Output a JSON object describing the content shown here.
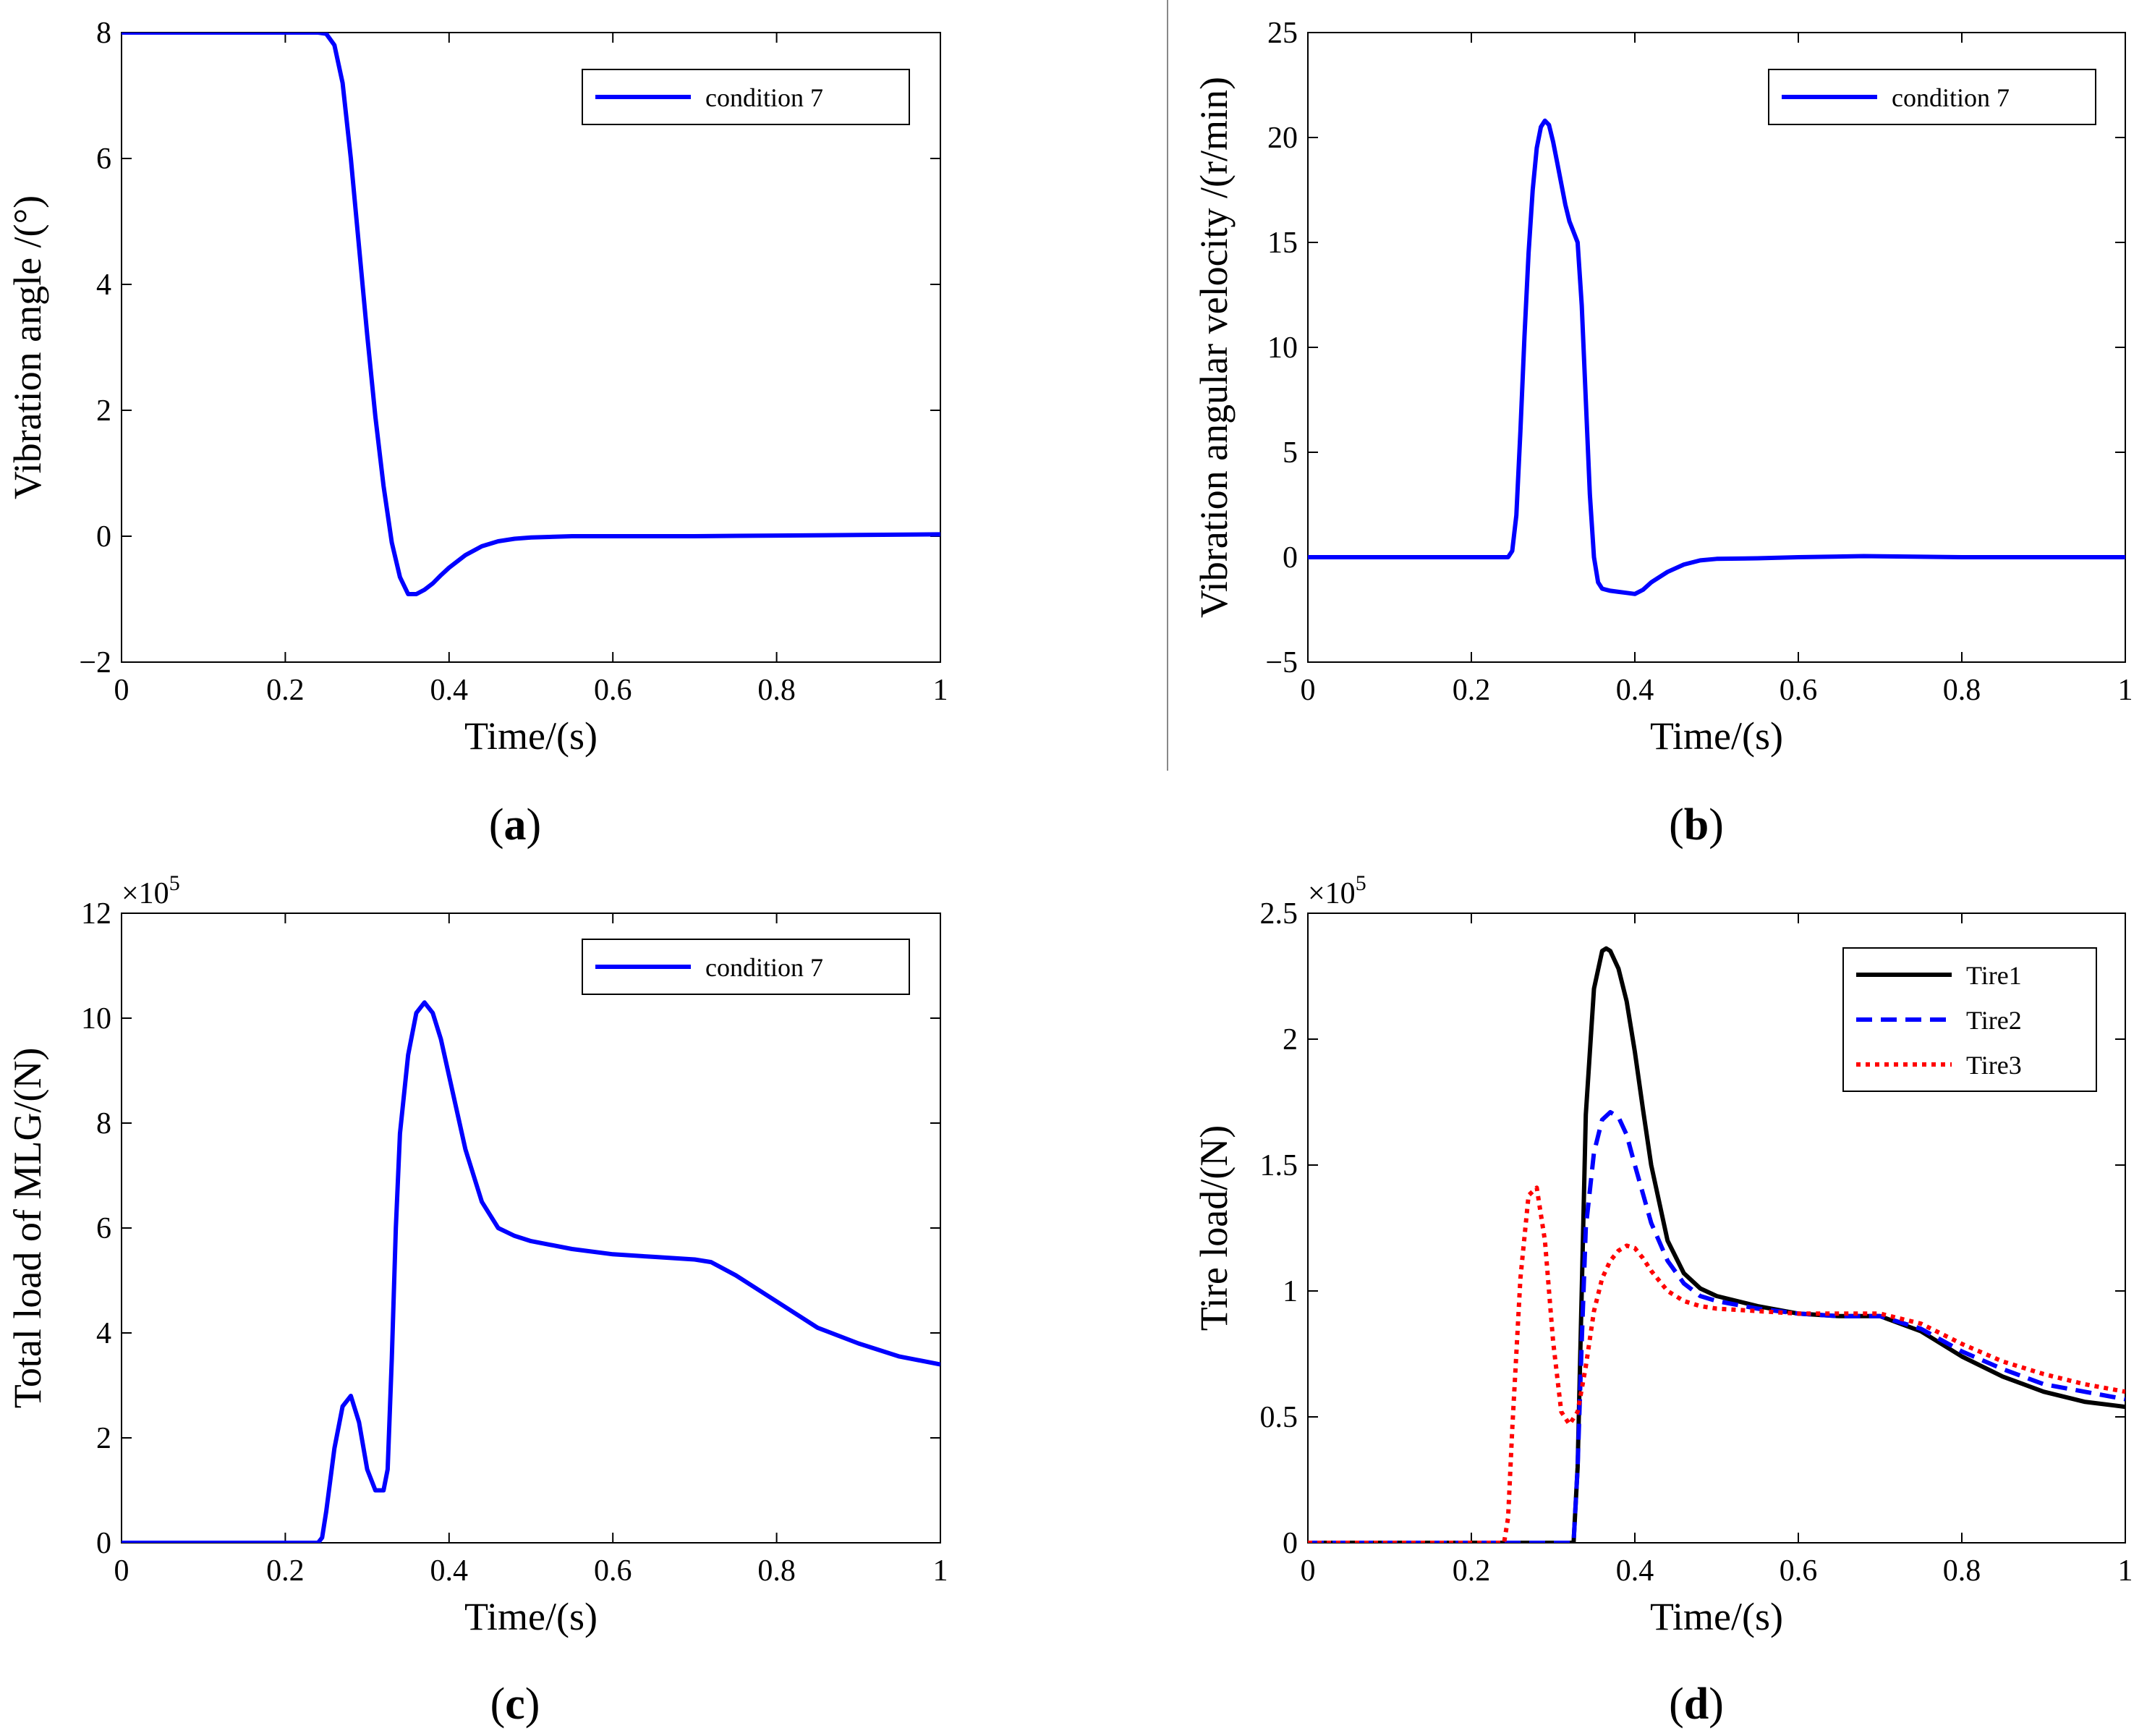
{
  "chart_data": [
    {
      "id": "a",
      "type": "line",
      "panel_label": "a",
      "xlabel": "Time/(s)",
      "ylabel": "Vibration angle /(°)",
      "xlim": [
        0,
        1
      ],
      "ylim": [
        -2,
        8
      ],
      "xticks": [
        0,
        0.2,
        0.4,
        0.6,
        0.8,
        1
      ],
      "xtick_labels": [
        "0",
        "0.2",
        "0.4",
        "0.6",
        "0.8",
        "1"
      ],
      "yticks": [
        -2,
        0,
        2,
        4,
        6,
        8
      ],
      "ytick_labels": [
        "−2",
        "0",
        "2",
        "4",
        "6",
        "8"
      ],
      "exponent_label": "",
      "legend_position": "top-right",
      "series": [
        {
          "name": "condition 7",
          "color": "#0000ff",
          "dash": "solid",
          "x": [
            0,
            0.1,
            0.2,
            0.24,
            0.25,
            0.26,
            0.27,
            0.28,
            0.29,
            0.3,
            0.31,
            0.32,
            0.33,
            0.34,
            0.35,
            0.36,
            0.37,
            0.38,
            0.39,
            0.4,
            0.42,
            0.44,
            0.46,
            0.48,
            0.5,
            0.55,
            0.6,
            0.7,
            0.8,
            0.9,
            1.0
          ],
          "y": [
            8.0,
            8.0,
            8.0,
            8.0,
            7.98,
            7.8,
            7.2,
            6.0,
            4.6,
            3.2,
            1.9,
            0.8,
            -0.1,
            -0.65,
            -0.92,
            -0.92,
            -0.85,
            -0.75,
            -0.62,
            -0.5,
            -0.3,
            -0.16,
            -0.08,
            -0.04,
            -0.02,
            0.0,
            0.0,
            0.0,
            0.01,
            0.02,
            0.03
          ]
        }
      ]
    },
    {
      "id": "b",
      "type": "line",
      "panel_label": "b",
      "xlabel": "Time/(s)",
      "ylabel": "Vibration angular velocity /(r/min)",
      "xlim": [
        0,
        1
      ],
      "ylim": [
        -5,
        25
      ],
      "xticks": [
        0,
        0.2,
        0.4,
        0.6,
        0.8,
        1
      ],
      "xtick_labels": [
        "0",
        "0.2",
        "0.4",
        "0.6",
        "0.8",
        "1"
      ],
      "yticks": [
        -5,
        0,
        5,
        10,
        15,
        20,
        25
      ],
      "ytick_labels": [
        "−5",
        "0",
        "5",
        "10",
        "15",
        "20",
        "25"
      ],
      "exponent_label": "",
      "legend_position": "top-right",
      "series": [
        {
          "name": "condition 7",
          "color": "#0000ff",
          "dash": "solid",
          "x": [
            0,
            0.1,
            0.2,
            0.245,
            0.25,
            0.255,
            0.26,
            0.265,
            0.27,
            0.275,
            0.28,
            0.285,
            0.29,
            0.295,
            0.3,
            0.305,
            0.31,
            0.315,
            0.32,
            0.325,
            0.33,
            0.335,
            0.34,
            0.345,
            0.35,
            0.355,
            0.36,
            0.365,
            0.37,
            0.38,
            0.39,
            0.4,
            0.41,
            0.42,
            0.44,
            0.46,
            0.48,
            0.5,
            0.55,
            0.6,
            0.68,
            0.8,
            0.9,
            1.0
          ],
          "y": [
            0,
            0,
            0,
            0,
            0.3,
            2.0,
            6.0,
            10.5,
            14.5,
            17.5,
            19.5,
            20.5,
            20.8,
            20.6,
            19.8,
            18.8,
            17.8,
            16.8,
            16.0,
            15.5,
            15.0,
            12.0,
            7.5,
            3.0,
            0.0,
            -1.2,
            -1.5,
            -1.55,
            -1.6,
            -1.65,
            -1.7,
            -1.75,
            -1.55,
            -1.2,
            -0.7,
            -0.35,
            -0.15,
            -0.08,
            -0.05,
            0.0,
            0.05,
            0.0,
            0.0,
            0.0
          ]
        }
      ]
    },
    {
      "id": "c",
      "type": "line",
      "panel_label": "c",
      "xlabel": "Time/(s)",
      "ylabel": "Total load of MLG/(N)",
      "xlim": [
        0,
        1
      ],
      "ylim": [
        0,
        12
      ],
      "xticks": [
        0,
        0.2,
        0.4,
        0.6,
        0.8,
        1
      ],
      "xtick_labels": [
        "0",
        "0.2",
        "0.4",
        "0.6",
        "0.8",
        "1"
      ],
      "yticks": [
        0,
        2,
        4,
        6,
        8,
        10,
        12
      ],
      "ytick_labels": [
        "0",
        "2",
        "4",
        "6",
        "8",
        "10",
        "12"
      ],
      "exponent_label": "×10",
      "exponent_power": "5",
      "legend_position": "top-right",
      "series": [
        {
          "name": "condition 7",
          "color": "#0000ff",
          "dash": "solid",
          "x": [
            0,
            0.1,
            0.2,
            0.24,
            0.245,
            0.25,
            0.26,
            0.27,
            0.28,
            0.29,
            0.3,
            0.31,
            0.32,
            0.325,
            0.33,
            0.335,
            0.34,
            0.35,
            0.36,
            0.37,
            0.38,
            0.39,
            0.4,
            0.42,
            0.44,
            0.46,
            0.48,
            0.5,
            0.55,
            0.6,
            0.65,
            0.7,
            0.72,
            0.75,
            0.8,
            0.85,
            0.9,
            0.95,
            1.0
          ],
          "y": [
            0,
            0,
            0,
            0,
            0.1,
            0.6,
            1.8,
            2.6,
            2.8,
            2.3,
            1.4,
            1.0,
            1.0,
            1.4,
            3.5,
            6.0,
            7.8,
            9.3,
            10.1,
            10.3,
            10.1,
            9.6,
            8.9,
            7.5,
            6.5,
            6.0,
            5.85,
            5.75,
            5.6,
            5.5,
            5.45,
            5.4,
            5.35,
            5.1,
            4.6,
            4.1,
            3.8,
            3.55,
            3.4
          ]
        }
      ]
    },
    {
      "id": "d",
      "type": "line",
      "panel_label": "d",
      "xlabel": "Time/(s)",
      "ylabel": "Tire load/(N)",
      "xlim": [
        0,
        1
      ],
      "ylim": [
        0,
        2.5
      ],
      "xticks": [
        0,
        0.2,
        0.4,
        0.6,
        0.8,
        1
      ],
      "xtick_labels": [
        "0",
        "0.2",
        "0.4",
        "0.6",
        "0.8",
        "1"
      ],
      "yticks": [
        0,
        0.5,
        1,
        1.5,
        2,
        2.5
      ],
      "ytick_labels": [
        "0",
        "0.5",
        "1",
        "1.5",
        "2",
        "2.5"
      ],
      "exponent_label": "×10",
      "exponent_power": "5",
      "legend_position": "top-right",
      "series": [
        {
          "name": "Tire1",
          "color": "#000000",
          "dash": "solid",
          "x": [
            0,
            0.1,
            0.2,
            0.3,
            0.325,
            0.33,
            0.335,
            0.34,
            0.35,
            0.36,
            0.365,
            0.37,
            0.38,
            0.39,
            0.4,
            0.41,
            0.42,
            0.44,
            0.46,
            0.48,
            0.5,
            0.55,
            0.6,
            0.65,
            0.7,
            0.75,
            0.8,
            0.85,
            0.9,
            0.95,
            1.0
          ],
          "y": [
            0,
            0,
            0,
            0,
            0,
            0.3,
            1.0,
            1.7,
            2.2,
            2.35,
            2.36,
            2.35,
            2.28,
            2.15,
            1.95,
            1.72,
            1.5,
            1.2,
            1.07,
            1.01,
            0.98,
            0.94,
            0.91,
            0.9,
            0.9,
            0.84,
            0.74,
            0.66,
            0.6,
            0.56,
            0.54
          ]
        },
        {
          "name": "Tire2",
          "color": "#0000ff",
          "dash": "dashed",
          "x": [
            0,
            0.1,
            0.2,
            0.3,
            0.325,
            0.33,
            0.335,
            0.34,
            0.35,
            0.36,
            0.37,
            0.38,
            0.39,
            0.4,
            0.42,
            0.44,
            0.46,
            0.48,
            0.5,
            0.55,
            0.6,
            0.65,
            0.7,
            0.75,
            0.8,
            0.85,
            0.9,
            0.95,
            1.0
          ],
          "y": [
            0,
            0,
            0,
            0,
            0,
            0.3,
            0.8,
            1.25,
            1.55,
            1.68,
            1.71,
            1.69,
            1.62,
            1.5,
            1.27,
            1.12,
            1.03,
            0.98,
            0.96,
            0.93,
            0.91,
            0.9,
            0.9,
            0.85,
            0.76,
            0.69,
            0.63,
            0.6,
            0.57
          ]
        },
        {
          "name": "Tire3",
          "color": "#ff0000",
          "dash": "dotted",
          "x": [
            0,
            0.1,
            0.2,
            0.24,
            0.245,
            0.25,
            0.26,
            0.27,
            0.28,
            0.29,
            0.3,
            0.31,
            0.32,
            0.33,
            0.34,
            0.35,
            0.36,
            0.37,
            0.38,
            0.39,
            0.4,
            0.41,
            0.42,
            0.44,
            0.46,
            0.48,
            0.5,
            0.55,
            0.6,
            0.65,
            0.7,
            0.75,
            0.8,
            0.85,
            0.9,
            0.95,
            1.0
          ],
          "y": [
            0,
            0,
            0,
            0,
            0.1,
            0.45,
            1.05,
            1.38,
            1.41,
            1.2,
            0.8,
            0.52,
            0.47,
            0.52,
            0.7,
            0.92,
            1.05,
            1.12,
            1.16,
            1.18,
            1.17,
            1.13,
            1.08,
            1.0,
            0.96,
            0.94,
            0.93,
            0.92,
            0.91,
            0.91,
            0.91,
            0.87,
            0.79,
            0.72,
            0.67,
            0.63,
            0.6
          ]
        }
      ]
    }
  ]
}
